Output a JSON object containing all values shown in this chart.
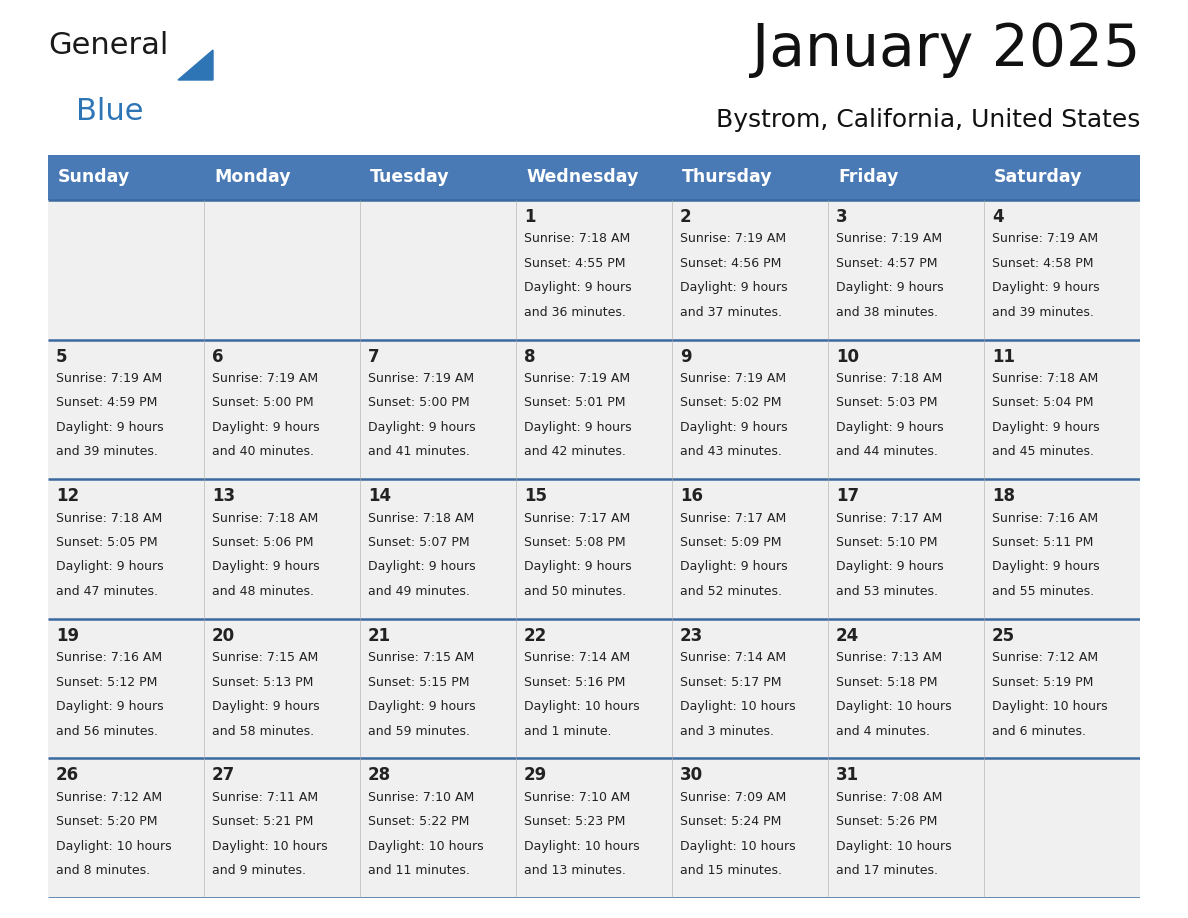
{
  "title": "January 2025",
  "subtitle": "Bystrom, California, United States",
  "header_bg": "#4a7ab5",
  "header_text_color": "#FFFFFF",
  "day_names": [
    "Sunday",
    "Monday",
    "Tuesday",
    "Wednesday",
    "Thursday",
    "Friday",
    "Saturday"
  ],
  "row_bg": "#F0F0F0",
  "cell_border_color": "#3a6aa0",
  "date_color": "#222222",
  "info_color": "#222222",
  "logo_general_color": "#1a1a1a",
  "logo_blue_color": "#2E75B6",
  "logo_triangle_color": "#2E75B6",
  "calendar_data": [
    [
      {
        "day": "",
        "sunrise": "",
        "sunset": "",
        "daylight": ""
      },
      {
        "day": "",
        "sunrise": "",
        "sunset": "",
        "daylight": ""
      },
      {
        "day": "",
        "sunrise": "",
        "sunset": "",
        "daylight": ""
      },
      {
        "day": "1",
        "sunrise": "7:18 AM",
        "sunset": "4:55 PM",
        "daylight": "9 hours\nand 36 minutes."
      },
      {
        "day": "2",
        "sunrise": "7:19 AM",
        "sunset": "4:56 PM",
        "daylight": "9 hours\nand 37 minutes."
      },
      {
        "day": "3",
        "sunrise": "7:19 AM",
        "sunset": "4:57 PM",
        "daylight": "9 hours\nand 38 minutes."
      },
      {
        "day": "4",
        "sunrise": "7:19 AM",
        "sunset": "4:58 PM",
        "daylight": "9 hours\nand 39 minutes."
      }
    ],
    [
      {
        "day": "5",
        "sunrise": "7:19 AM",
        "sunset": "4:59 PM",
        "daylight": "9 hours\nand 39 minutes."
      },
      {
        "day": "6",
        "sunrise": "7:19 AM",
        "sunset": "5:00 PM",
        "daylight": "9 hours\nand 40 minutes."
      },
      {
        "day": "7",
        "sunrise": "7:19 AM",
        "sunset": "5:00 PM",
        "daylight": "9 hours\nand 41 minutes."
      },
      {
        "day": "8",
        "sunrise": "7:19 AM",
        "sunset": "5:01 PM",
        "daylight": "9 hours\nand 42 minutes."
      },
      {
        "day": "9",
        "sunrise": "7:19 AM",
        "sunset": "5:02 PM",
        "daylight": "9 hours\nand 43 minutes."
      },
      {
        "day": "10",
        "sunrise": "7:18 AM",
        "sunset": "5:03 PM",
        "daylight": "9 hours\nand 44 minutes."
      },
      {
        "day": "11",
        "sunrise": "7:18 AM",
        "sunset": "5:04 PM",
        "daylight": "9 hours\nand 45 minutes."
      }
    ],
    [
      {
        "day": "12",
        "sunrise": "7:18 AM",
        "sunset": "5:05 PM",
        "daylight": "9 hours\nand 47 minutes."
      },
      {
        "day": "13",
        "sunrise": "7:18 AM",
        "sunset": "5:06 PM",
        "daylight": "9 hours\nand 48 minutes."
      },
      {
        "day": "14",
        "sunrise": "7:18 AM",
        "sunset": "5:07 PM",
        "daylight": "9 hours\nand 49 minutes."
      },
      {
        "day": "15",
        "sunrise": "7:17 AM",
        "sunset": "5:08 PM",
        "daylight": "9 hours\nand 50 minutes."
      },
      {
        "day": "16",
        "sunrise": "7:17 AM",
        "sunset": "5:09 PM",
        "daylight": "9 hours\nand 52 minutes."
      },
      {
        "day": "17",
        "sunrise": "7:17 AM",
        "sunset": "5:10 PM",
        "daylight": "9 hours\nand 53 minutes."
      },
      {
        "day": "18",
        "sunrise": "7:16 AM",
        "sunset": "5:11 PM",
        "daylight": "9 hours\nand 55 minutes."
      }
    ],
    [
      {
        "day": "19",
        "sunrise": "7:16 AM",
        "sunset": "5:12 PM",
        "daylight": "9 hours\nand 56 minutes."
      },
      {
        "day": "20",
        "sunrise": "7:15 AM",
        "sunset": "5:13 PM",
        "daylight": "9 hours\nand 58 minutes."
      },
      {
        "day": "21",
        "sunrise": "7:15 AM",
        "sunset": "5:15 PM",
        "daylight": "9 hours\nand 59 minutes."
      },
      {
        "day": "22",
        "sunrise": "7:14 AM",
        "sunset": "5:16 PM",
        "daylight": "10 hours\nand 1 minute."
      },
      {
        "day": "23",
        "sunrise": "7:14 AM",
        "sunset": "5:17 PM",
        "daylight": "10 hours\nand 3 minutes."
      },
      {
        "day": "24",
        "sunrise": "7:13 AM",
        "sunset": "5:18 PM",
        "daylight": "10 hours\nand 4 minutes."
      },
      {
        "day": "25",
        "sunrise": "7:12 AM",
        "sunset": "5:19 PM",
        "daylight": "10 hours\nand 6 minutes."
      }
    ],
    [
      {
        "day": "26",
        "sunrise": "7:12 AM",
        "sunset": "5:20 PM",
        "daylight": "10 hours\nand 8 minutes."
      },
      {
        "day": "27",
        "sunrise": "7:11 AM",
        "sunset": "5:21 PM",
        "daylight": "10 hours\nand 9 minutes."
      },
      {
        "day": "28",
        "sunrise": "7:10 AM",
        "sunset": "5:22 PM",
        "daylight": "10 hours\nand 11 minutes."
      },
      {
        "day": "29",
        "sunrise": "7:10 AM",
        "sunset": "5:23 PM",
        "daylight": "10 hours\nand 13 minutes."
      },
      {
        "day": "30",
        "sunrise": "7:09 AM",
        "sunset": "5:24 PM",
        "daylight": "10 hours\nand 15 minutes."
      },
      {
        "day": "31",
        "sunrise": "7:08 AM",
        "sunset": "5:26 PM",
        "daylight": "10 hours\nand 17 minutes."
      },
      {
        "day": "",
        "sunrise": "",
        "sunset": "",
        "daylight": ""
      }
    ]
  ],
  "figsize": [
    11.88,
    9.18
  ],
  "dpi": 100
}
